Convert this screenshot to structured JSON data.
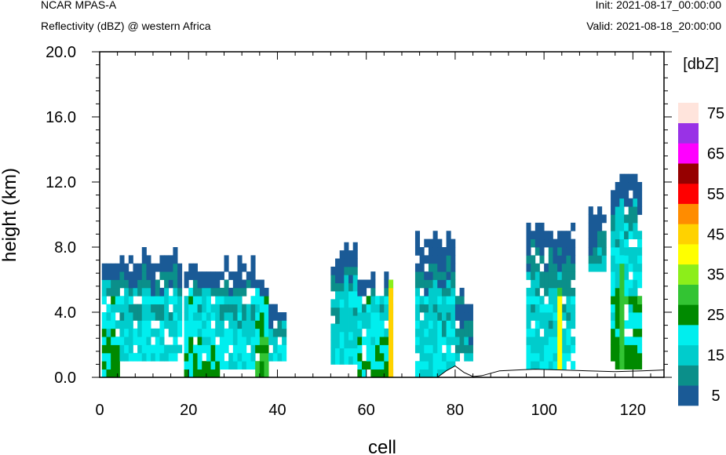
{
  "header": {
    "model": "NCAR MPAS-A",
    "variable": "Reflectivity (dBZ) @ western Africa",
    "init": "Init: 2021-08-17_00:00:00",
    "valid": "Valid: 2021-08-18_20:00:00"
  },
  "chart_data": {
    "type": "heatmap",
    "title": "Reflectivity (dBZ) @ western Africa",
    "xlabel": "cell",
    "ylabel": "height (km)",
    "xlim": [
      0,
      127
    ],
    "ylim": [
      0,
      20
    ],
    "x_ticks": [
      0,
      20,
      40,
      60,
      80,
      100,
      120
    ],
    "x_tick_labels": [
      "0",
      "20",
      "40",
      "60",
      "80",
      "100",
      "120"
    ],
    "y_ticks": [
      0,
      4,
      8,
      12,
      16,
      20
    ],
    "y_tick_labels": [
      "0.0",
      "4.0",
      "8.0",
      "12.0",
      "16.0",
      "20.0"
    ],
    "colorbar": {
      "label": "[dbZ]",
      "levels": [
        5,
        10,
        15,
        20,
        25,
        30,
        35,
        40,
        45,
        50,
        55,
        60,
        65,
        70,
        75,
        80
      ],
      "tick_labels": [
        "5",
        "15",
        "25",
        "35",
        "45",
        "55",
        "65",
        "75"
      ],
      "colors": [
        "#1a5a96",
        "#0b8f8a",
        "#00cccc",
        "#00eeee",
        "#008a00",
        "#33c433",
        "#8cee1a",
        "#ffff00",
        "#ffd200",
        "#ff8c00",
        "#ff0000",
        "#960000",
        "#ff00ff",
        "#9932e6",
        "#ffe4dc"
      ]
    },
    "terrain": [
      [
        0,
        0
      ],
      [
        76,
        0
      ],
      [
        78,
        0.4
      ],
      [
        80,
        0.7
      ],
      [
        82,
        0.3
      ],
      [
        84,
        0.05
      ],
      [
        86,
        0.1
      ],
      [
        88,
        0.25
      ],
      [
        90,
        0.4
      ],
      [
        94,
        0.45
      ],
      [
        98,
        0.5
      ],
      [
        104,
        0.45
      ],
      [
        110,
        0.4
      ],
      [
        116,
        0.35
      ],
      [
        122,
        0.4
      ],
      [
        127,
        0.45
      ]
    ],
    "echo_columns": [
      {
        "x": [
          0.5,
          4.5
        ],
        "base": 0,
        "top": 7.0,
        "core": 20
      },
      {
        "x": [
          4.5,
          18
        ],
        "base": 1.0,
        "top": 7.8,
        "core": 15
      },
      {
        "x": [
          19,
          27
        ],
        "base": 0,
        "top": 7.0,
        "core": 20
      },
      {
        "x": [
          27,
          35
        ],
        "base": 0.5,
        "top": 7.4,
        "core": 15
      },
      {
        "x": [
          35,
          38
        ],
        "base": 0,
        "top": 6.5,
        "core": 25
      },
      {
        "x": [
          38,
          42
        ],
        "base": 1.0,
        "top": 5.0,
        "core": 15
      },
      {
        "x": [
          52,
          58
        ],
        "base": 0.8,
        "top": 8.0,
        "core": 15
      },
      {
        "x": [
          58,
          66
        ],
        "base": 0,
        "top": 6.5,
        "core": 20
      },
      {
        "x": [
          71,
          80
        ],
        "base": 0,
        "top": 9.0,
        "core": 15
      },
      {
        "x": [
          80,
          84
        ],
        "base": 1.0,
        "top": 5.5,
        "core": 10
      },
      {
        "x": [
          96,
          107
        ],
        "base": 0.5,
        "top": 9.5,
        "core": 15
      },
      {
        "x": [
          110,
          114
        ],
        "base": 6.5,
        "top": 10.5,
        "core": 10
      },
      {
        "x": [
          115,
          122
        ],
        "base": 0.5,
        "top": 12.5,
        "core": 20
      }
    ],
    "notable_features": [
      {
        "x": 65,
        "base": 0,
        "top": 6.0,
        "dbz": 45
      },
      {
        "x": 103,
        "base": 0.5,
        "top": 5.5,
        "dbz": 40
      },
      {
        "x": 117,
        "base": 0.5,
        "top": 7.5,
        "dbz": 30
      }
    ]
  }
}
